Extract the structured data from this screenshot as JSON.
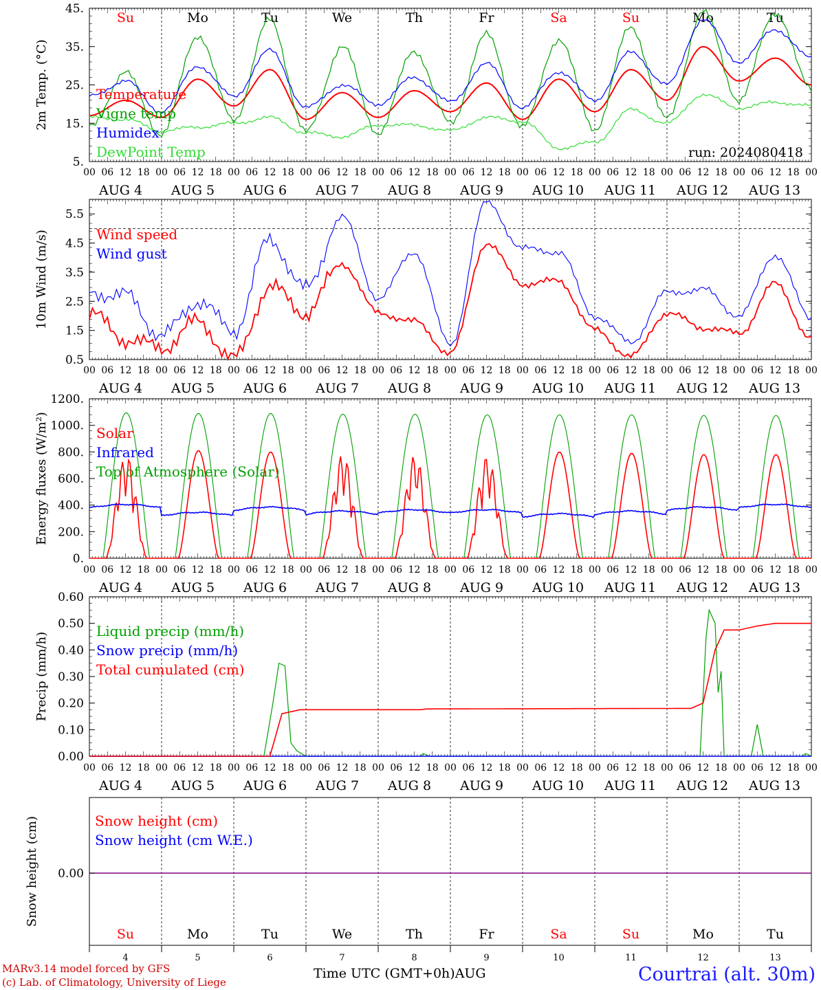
{
  "colors": {
    "red": "#ff0000",
    "green": "#00a000",
    "blue": "#0000ff",
    "lightgreen": "#33dd33",
    "purple": "#800080",
    "axis": "#000000"
  },
  "run_label": "run: 2024080418",
  "footer": {
    "model": "MARv3.14 model forced by GFS",
    "credit": "(c) Lab. of Climatology, University of Liege",
    "time_label": "Time UTC (GMT+0h)AUG",
    "station": "Courtrai (alt. 30m)"
  },
  "weekdays": [
    "Su",
    "Mo",
    "Tu",
    "We",
    "Th",
    "Fr",
    "Sa",
    "Su",
    "Mo",
    "Tu"
  ],
  "weekday_colors": [
    "red",
    "black",
    "black",
    "black",
    "black",
    "black",
    "red",
    "red",
    "black",
    "black"
  ],
  "date_labels": [
    "AUG 4",
    "AUG 5",
    "AUG 6",
    "AUG 7",
    "AUG 8",
    "AUG 9",
    "AUG 10",
    "AUG 11",
    "AUG 12",
    "AUG 13"
  ],
  "day_numbers": [
    "4",
    "5",
    "6",
    "7",
    "8",
    "9",
    "10",
    "11",
    "12",
    "13"
  ],
  "hour_ticks": [
    "00",
    "06",
    "12",
    "18"
  ],
  "chart_data": [
    {
      "type": "line",
      "id": "temp",
      "ylabel": "2m Temp. (°C)",
      "ylim": [
        5,
        45
      ],
      "yticks": [
        "5.",
        "15.",
        "25.",
        "35.",
        "45."
      ],
      "x": [
        "Aug 4 00h",
        "Aug 4 12h",
        "Aug 5 00h",
        "Aug 5 12h",
        "Aug 6 00h",
        "Aug 6 12h",
        "Aug 7 00h",
        "Aug 7 12h",
        "Aug 8 00h",
        "Aug 8 12h",
        "Aug 9 00h",
        "Aug 9 12h",
        "Aug 10 00h",
        "Aug 10 12h",
        "Aug 11 00h",
        "Aug 11 12h",
        "Aug 12 00h",
        "Aug 12 12h",
        "Aug 13 00h",
        "Aug 13 12h",
        "Aug 14 00h"
      ],
      "series": [
        {
          "name": "Temperature",
          "color": "red",
          "values": [
            17,
            21,
            16.5,
            26.5,
            19.5,
            29,
            16,
            23,
            16.5,
            23.5,
            18,
            25.5,
            16,
            26.5,
            18,
            29,
            21,
            35,
            26,
            32,
            25
          ]
        },
        {
          "name": "Vigne temp",
          "color": "green",
          "values": [
            14,
            28,
            12,
            38,
            16,
            42,
            12.5,
            35,
            12.5,
            34,
            15,
            38,
            14,
            37,
            13.5,
            40,
            16,
            44,
            21,
            44,
            24
          ]
        },
        {
          "name": "Humidex",
          "color": "blue",
          "values": [
            22,
            26,
            18,
            30,
            22,
            34,
            19,
            25,
            20,
            27,
            20.5,
            30.5,
            19,
            28.5,
            21,
            33.5,
            25,
            42,
            31,
            39.5,
            32
          ]
        },
        {
          "name": "DewPoint Temp",
          "color": "lightgreen",
          "values": [
            16.5,
            16,
            13,
            14,
            15,
            16.5,
            12.5,
            11.5,
            14.5,
            14.5,
            13,
            16.5,
            15.5,
            8.5,
            10,
            18.5,
            15,
            22.5,
            19,
            20.5,
            19.5
          ]
        }
      ]
    },
    {
      "type": "line",
      "id": "wind",
      "ylabel": "10m Wind (m/s)",
      "ylim": [
        0.5,
        6
      ],
      "yticks": [
        "0.5",
        "1.5",
        "2.5",
        "3.5",
        "4.5",
        "5.5"
      ],
      "reference_line": 5,
      "x": [
        "Aug 4 00h",
        "Aug 4 12h",
        "Aug 5 00h",
        "Aug 5 12h",
        "Aug 6 00h",
        "Aug 6 12h",
        "Aug 7 00h",
        "Aug 7 12h",
        "Aug 8 00h",
        "Aug 8 12h",
        "Aug 9 00h",
        "Aug 9 12h",
        "Aug 10 00h",
        "Aug 10 12h",
        "Aug 11 00h",
        "Aug 11 12h",
        "Aug 12 00h",
        "Aug 12 12h",
        "Aug 13 00h",
        "Aug 13 12h",
        "Aug 14 00h"
      ],
      "series": [
        {
          "name": "Wind speed",
          "color": "red",
          "values": [
            2.1,
            1.2,
            0.9,
            1.8,
            0.5,
            3,
            2.1,
            3.8,
            2.1,
            1.8,
            0.7,
            4.5,
            3.1,
            3.2,
            1.5,
            0.6,
            2.1,
            1.6,
            1.4,
            3.1,
            1.2
          ]
        },
        {
          "name": "Wind gust",
          "color": "blue",
          "values": [
            2.8,
            2.7,
            1.3,
            2.5,
            1.5,
            4.6,
            2.9,
            5.4,
            2.6,
            4.2,
            1.0,
            5.9,
            4.3,
            4.2,
            2.0,
            1.1,
            2.8,
            2.9,
            2.0,
            4.1,
            1.9
          ]
        }
      ]
    },
    {
      "type": "line",
      "id": "energy",
      "ylabel": "Energy fluxes (W/m²)",
      "ylim": [
        0,
        1200
      ],
      "yticks": [
        "0.",
        "200.",
        "400.",
        "600.",
        "800.",
        "1000.",
        "1200."
      ],
      "x": [
        "Aug 4",
        "Aug 5",
        "Aug 6",
        "Aug 7",
        "Aug 8",
        "Aug 9",
        "Aug 10",
        "Aug 11",
        "Aug 12",
        "Aug 13"
      ],
      "series": [
        {
          "name": "Solar",
          "color": "red",
          "values": [
            780,
            810,
            800,
            790,
            780,
            770,
            800,
            790,
            780,
            780
          ]
        },
        {
          "name": "Infrared",
          "color": "blue",
          "values": [
            380,
            320,
            360,
            330,
            340,
            340,
            310,
            330,
            360,
            380
          ]
        },
        {
          "name": "Top of Atmosphere (Solar)",
          "color": "green",
          "values": [
            1095,
            1090,
            1090,
            1085,
            1085,
            1080,
            1080,
            1080,
            1075,
            1075
          ]
        }
      ]
    },
    {
      "type": "line",
      "id": "precip",
      "ylabel": "Precip (mm/h)",
      "ylim": [
        0,
        0.6
      ],
      "yticks": [
        "0.00",
        "0.10",
        "0.20",
        "0.30",
        "0.40",
        "0.50",
        "0.60"
      ],
      "x": [
        "Aug 6 12h",
        "Aug 6 16h",
        "Aug 7 00h",
        "Aug 8 15h",
        "Aug 12 12h",
        "Aug 12 14h",
        "Aug 12 16h",
        "Aug 13 00h",
        "Aug 13 06h",
        "Aug 13 12h",
        "Aug 14 00h"
      ],
      "series": [
        {
          "name": "Liquid precip (mm/h)",
          "color": "green",
          "values": [
            0.0,
            0.35,
            0.0,
            0.01,
            0.0,
            0.55,
            0.32,
            0.0,
            0.12,
            0.0,
            0.01
          ]
        },
        {
          "name": "Snow precip (mm/h)",
          "color": "blue",
          "values": [
            0,
            0,
            0,
            0,
            0,
            0,
            0,
            0,
            0,
            0,
            0
          ]
        },
        {
          "name": "Total cumulated (cm)",
          "color": "red",
          "values": [
            0.0,
            0.16,
            0.175,
            0.178,
            0.18,
            0.38,
            0.47,
            0.475,
            0.49,
            0.5,
            0.5
          ]
        }
      ]
    },
    {
      "type": "line",
      "id": "snow",
      "ylabel": "Snow height (cm)",
      "yticks": [
        "0.00"
      ],
      "series": [
        {
          "name": "Snow height (cm)",
          "color": "red",
          "values": [
            0,
            0
          ]
        },
        {
          "name": "Snow height (cm W.E.)",
          "color": "blue",
          "values": [
            0,
            0
          ]
        }
      ]
    }
  ]
}
